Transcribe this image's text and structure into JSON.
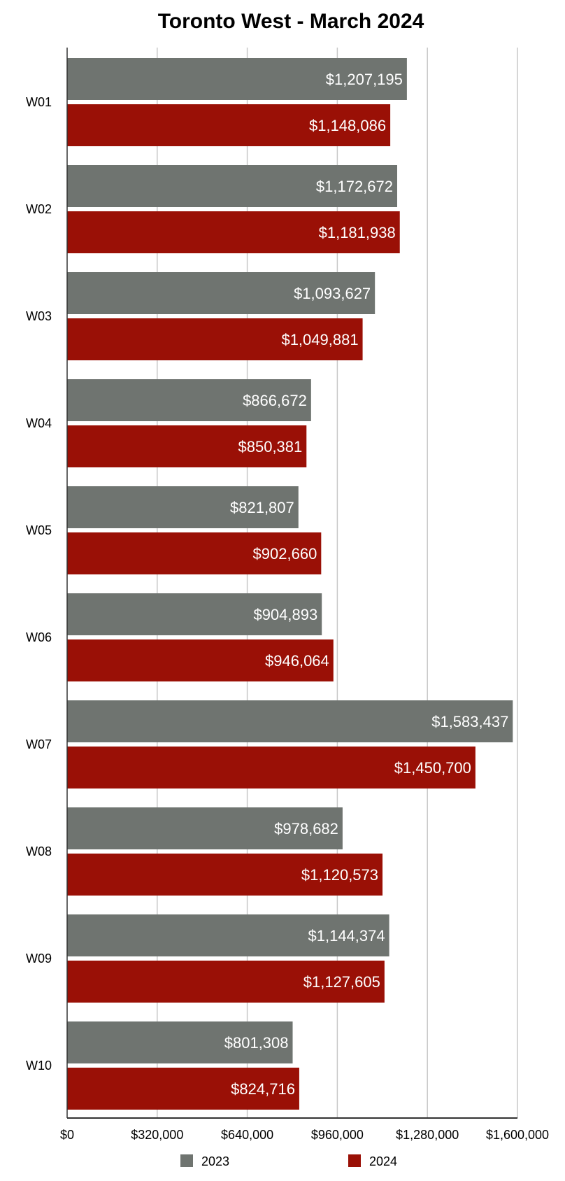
{
  "chart_data": {
    "type": "bar",
    "orientation": "horizontal",
    "title": "Toronto West - March 2024",
    "categories": [
      "W01",
      "W02",
      "W03",
      "W04",
      "W05",
      "W06",
      "W07",
      "W08",
      "W09",
      "W10"
    ],
    "series": [
      {
        "name": "2023",
        "color": "#6f7470",
        "values": [
          1207195,
          1172672,
          1093627,
          866672,
          821807,
          904893,
          1583437,
          978682,
          1144374,
          801308
        ],
        "labels": [
          "$1,207,195",
          "$1,172,672",
          "$1,093,627",
          "$866,672",
          "$821,807",
          "$904,893",
          "$1,583,437",
          "$978,682",
          "$1,144,374",
          "$801,308"
        ]
      },
      {
        "name": "2024",
        "color": "#9a1006",
        "values": [
          1148086,
          1181938,
          1049881,
          850381,
          902660,
          946064,
          1450700,
          1120573,
          1127605,
          824716
        ],
        "labels": [
          "$1,148,086",
          "$1,181,938",
          "$1,049,881",
          "$850,381",
          "$902,660",
          "$946,064",
          "$1,450,700",
          "$1,120,573",
          "$1,127,605",
          "$824,716"
        ]
      }
    ],
    "xlim": [
      0,
      1600000
    ],
    "x_ticks": [
      0,
      320000,
      640000,
      960000,
      1280000,
      1600000
    ],
    "x_tick_labels": [
      "$0",
      "$320,000",
      "$640,000",
      "$960,000",
      "$1,280,000",
      "$1,600,000"
    ],
    "xlabel": "",
    "ylabel": "",
    "grid": true,
    "legend_position": "bottom"
  }
}
